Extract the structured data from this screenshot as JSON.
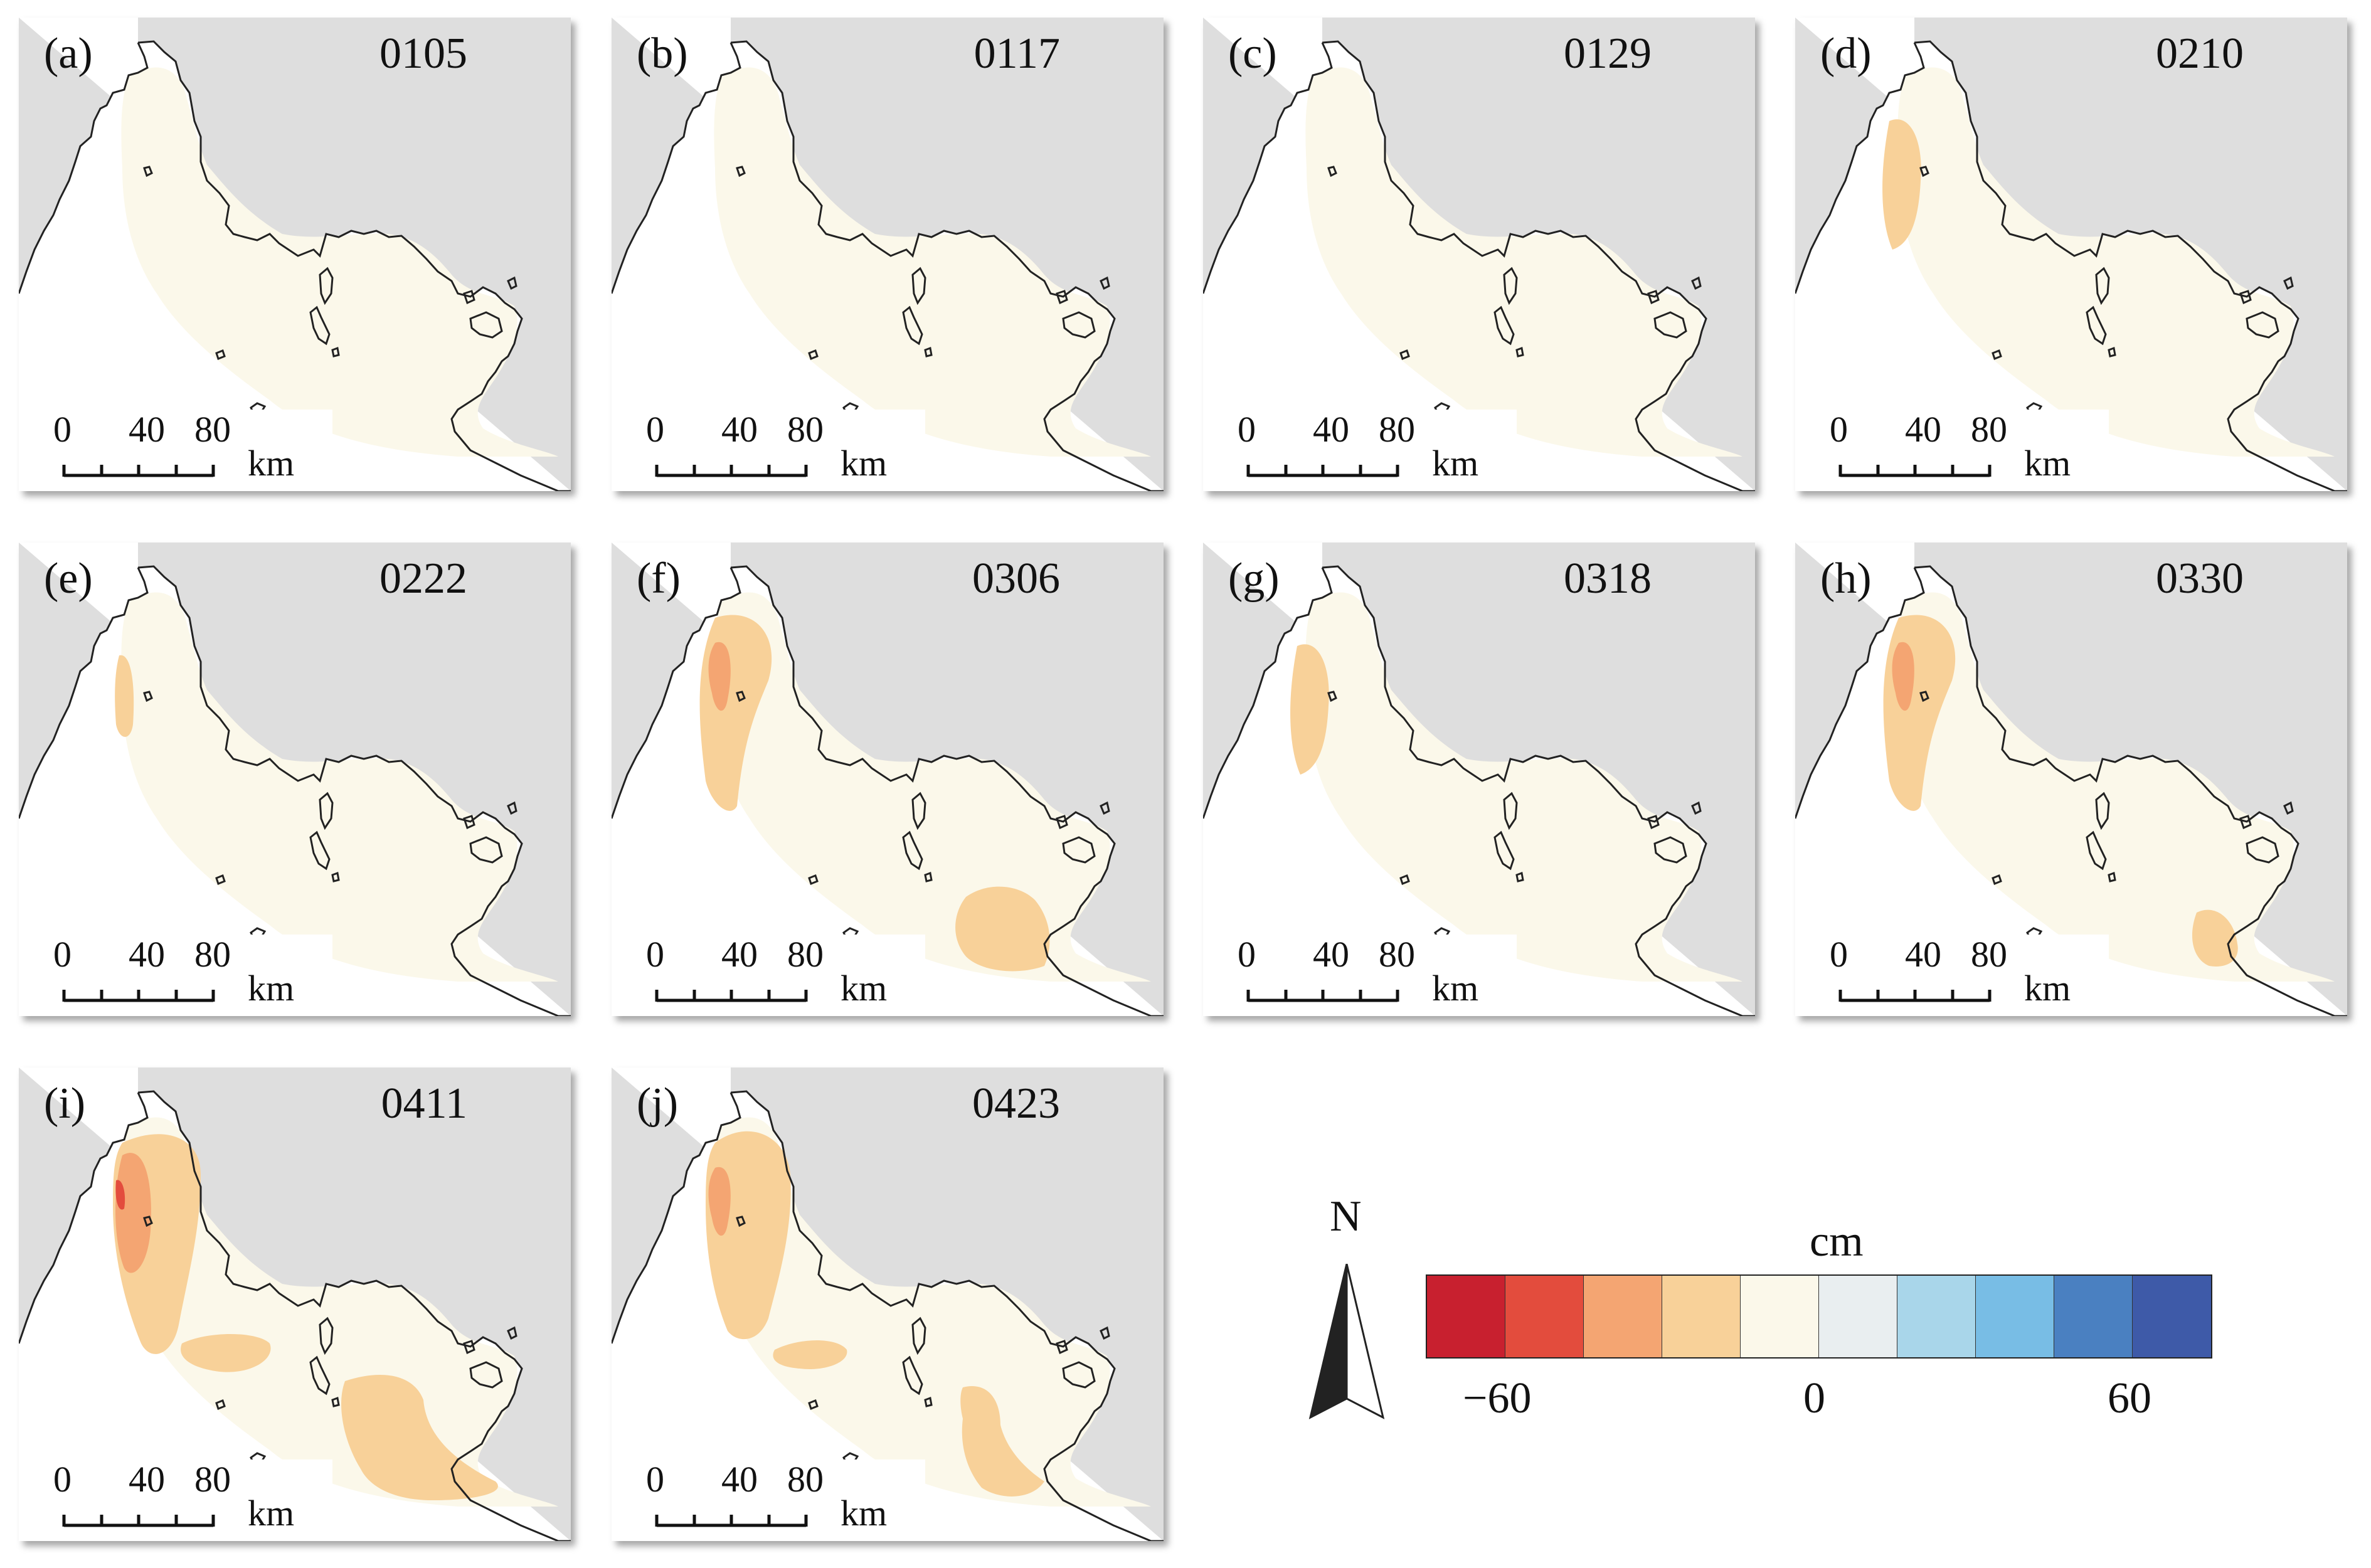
{
  "panels": [
    {
      "label": "(a)",
      "date": "0105"
    },
    {
      "label": "(b)",
      "date": "0117"
    },
    {
      "label": "(c)",
      "date": "0129"
    },
    {
      "label": "(d)",
      "date": "0210"
    },
    {
      "label": "(e)",
      "date": "0222"
    },
    {
      "label": "(f)",
      "date": "0306"
    },
    {
      "label": "(g)",
      "date": "0318"
    },
    {
      "label": "(h)",
      "date": "0330"
    },
    {
      "label": "(i)",
      "date": "0411"
    },
    {
      "label": "(j)",
      "date": "0423"
    }
  ],
  "scale_bar": {
    "ticks": [
      "0",
      "40",
      "80"
    ],
    "unit": "km"
  },
  "north_arrow": {
    "label": "N"
  },
  "legend": {
    "unit": "cm",
    "tick_labels": [
      "−60",
      "0",
      "60"
    ],
    "colors": [
      "#c8202f",
      "#e34c3d",
      "#f4a572",
      "#f8d199",
      "#fbf8ea",
      "#e9eef0",
      "#a9d6ea",
      "#78bde5",
      "#4a80c1",
      "#3e5aa8"
    ]
  },
  "map_colors": {
    "land": "#dedede",
    "data_base": "#fbf8ea",
    "water": "#ffffff"
  }
}
